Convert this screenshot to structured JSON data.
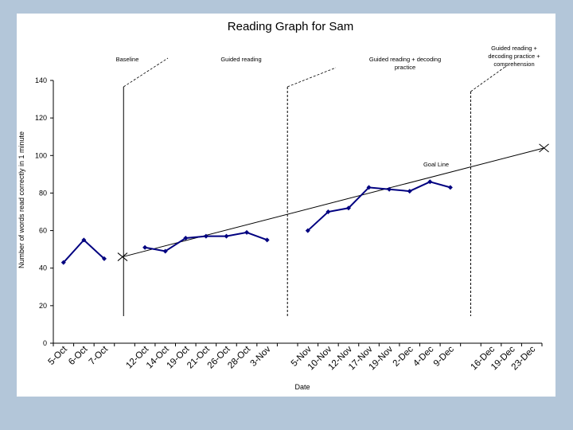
{
  "chart_data": {
    "type": "line",
    "title": "Reading Graph for Sam",
    "xlabel": "Date",
    "ylabel": "Number of words read correctly in 1 minute",
    "ylim": [
      0,
      140
    ],
    "yticks": [
      0,
      20,
      40,
      60,
      80,
      100,
      120,
      140
    ],
    "categories": [
      "5-Oct",
      "6-Oct",
      "7-Oct",
      "",
      "12-Oct",
      "14-Oct",
      "19-Oct",
      "21-Oct",
      "26-Oct",
      "28-Oct",
      "3-Nov",
      "",
      "5-Nov",
      "10-Nov",
      "12-Nov",
      "17-Nov",
      "19-Nov",
      "2-Dec",
      "4-Dec",
      "9-Dec",
      "",
      "16-Dec",
      "19-Dec",
      "23-Dec"
    ],
    "series": [
      {
        "color": "#000080",
        "values": [
          43,
          55,
          45,
          null,
          51,
          49,
          56,
          57,
          57,
          59,
          55,
          null,
          60,
          70,
          72,
          83,
          82,
          81,
          86,
          83,
          null,
          null,
          null,
          null
        ]
      }
    ],
    "goal_line": {
      "label": "Goal Line",
      "start": {
        "x": 3.4,
        "y": 46
      },
      "end": {
        "x": 24.1,
        "y": 104
      }
    },
    "phase_changes": [
      {
        "label": "Baseline",
        "after_index": 3.45
      },
      {
        "label": "Guided reading",
        "after_index": 11.5
      },
      {
        "label": "Guided reading + decoding practice",
        "after_index": 20.5
      }
    ],
    "phase_labels": [
      {
        "text": "Baseline",
        "lines": [
          "Baseline"
        ]
      },
      {
        "text": "Guided reading",
        "lines": [
          "Guided reading"
        ]
      },
      {
        "text": "Guided reading + decoding practice",
        "lines": [
          "Guided reading + decoding",
          "practice"
        ]
      },
      {
        "text": "Guided reading + decoding practice + comprehension",
        "lines": [
          "Guided reading +",
          "decoding practice +",
          "comprehension"
        ]
      }
    ],
    "grid": false,
    "legend": "none"
  }
}
